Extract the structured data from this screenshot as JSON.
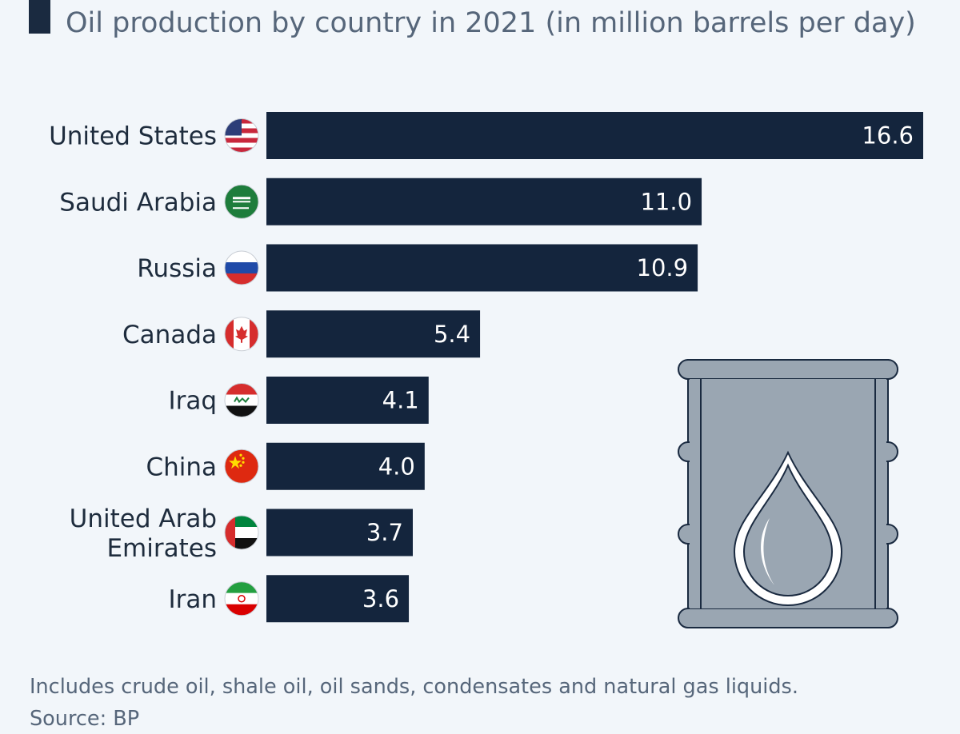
{
  "title": "Oil production by country in 2021 (in million barrels per day)",
  "chart_data": {
    "type": "bar",
    "orientation": "horizontal",
    "title": "Oil production by country in 2021 (in million barrels per day)",
    "categories": [
      "United States",
      "Saudi Arabia",
      "Russia",
      "Canada",
      "Iraq",
      "China",
      "United Arab Emirates",
      "Iran"
    ],
    "label_lines": [
      [
        "United States"
      ],
      [
        "Saudi Arabia"
      ],
      [
        "Russia"
      ],
      [
        "Canada"
      ],
      [
        "Iraq"
      ],
      [
        "China"
      ],
      [
        "United Arab",
        "Emirates"
      ],
      [
        "Iran"
      ]
    ],
    "values": [
      16.6,
      11.0,
      10.9,
      5.4,
      4.1,
      4.0,
      3.7,
      3.6
    ],
    "value_labels": [
      "16.6",
      "11.0",
      "10.9",
      "5.4",
      "4.1",
      "4.0",
      "3.7",
      "3.6"
    ],
    "flags": [
      "us-flag-icon",
      "saudi-arabia-flag-icon",
      "russia-flag-icon",
      "canada-flag-icon",
      "iraq-flag-icon",
      "china-flag-icon",
      "uae-flag-icon",
      "iran-flag-icon"
    ],
    "xlim": [
      0,
      16.6
    ],
    "bar_color": "#14253d",
    "grid": false,
    "legend": "none"
  },
  "decoration": "oil-barrel-icon",
  "footnote": "Includes crude oil, shale oil, oil sands, condensates and natural gas liquids.",
  "source": "Source: BP"
}
